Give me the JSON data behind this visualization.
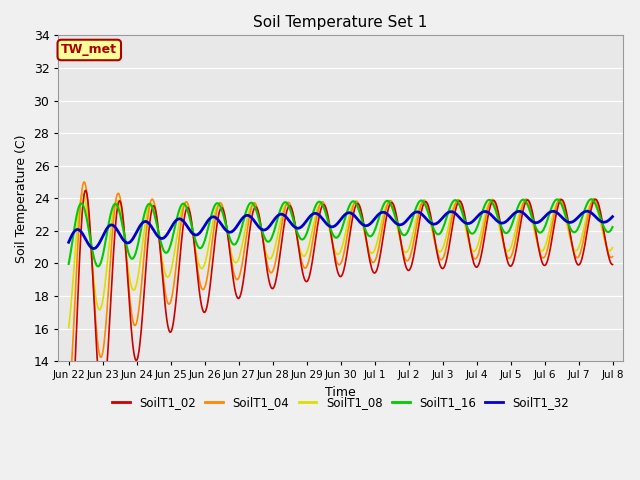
{
  "title": "Soil Temperature Set 1",
  "xlabel": "Time",
  "ylabel": "Soil Temperature (C)",
  "ylim": [
    14,
    34
  ],
  "yticks": [
    14,
    16,
    18,
    20,
    22,
    24,
    26,
    28,
    30,
    32,
    34
  ],
  "xlim": [
    -0.3,
    16.3
  ],
  "bg_color": "#e8e8e8",
  "fig_color": "#f0f0f0",
  "annotation_text": "TW_met",
  "annotation_bg": "#ffff99",
  "annotation_border": "#aa0000",
  "series_colors": {
    "SoilT1_02": "#cc0000",
    "SoilT1_04": "#ff8800",
    "SoilT1_08": "#dddd00",
    "SoilT1_16": "#00cc00",
    "SoilT1_32": "#0000cc"
  },
  "xtick_positions": [
    0,
    1,
    2,
    3,
    4,
    5,
    6,
    7,
    8,
    9,
    10,
    11,
    12,
    13,
    14,
    15,
    16
  ],
  "xtick_labels": [
    "Jun 22",
    "Jun 23",
    "Jun 24",
    "Jun 25",
    "Jun 26",
    "Jun 27",
    "Jun 28",
    "Jun 29",
    "Jun 30",
    "Jul 1",
    "Jul 2",
    "Jul 3",
    "Jul 4",
    "Jul 5",
    "Jul 6",
    "Jul 7",
    "Jul 8"
  ],
  "legend_entries": [
    "SoilT1_02",
    "SoilT1_04",
    "SoilT1_08",
    "SoilT1_16",
    "SoilT1_32"
  ]
}
